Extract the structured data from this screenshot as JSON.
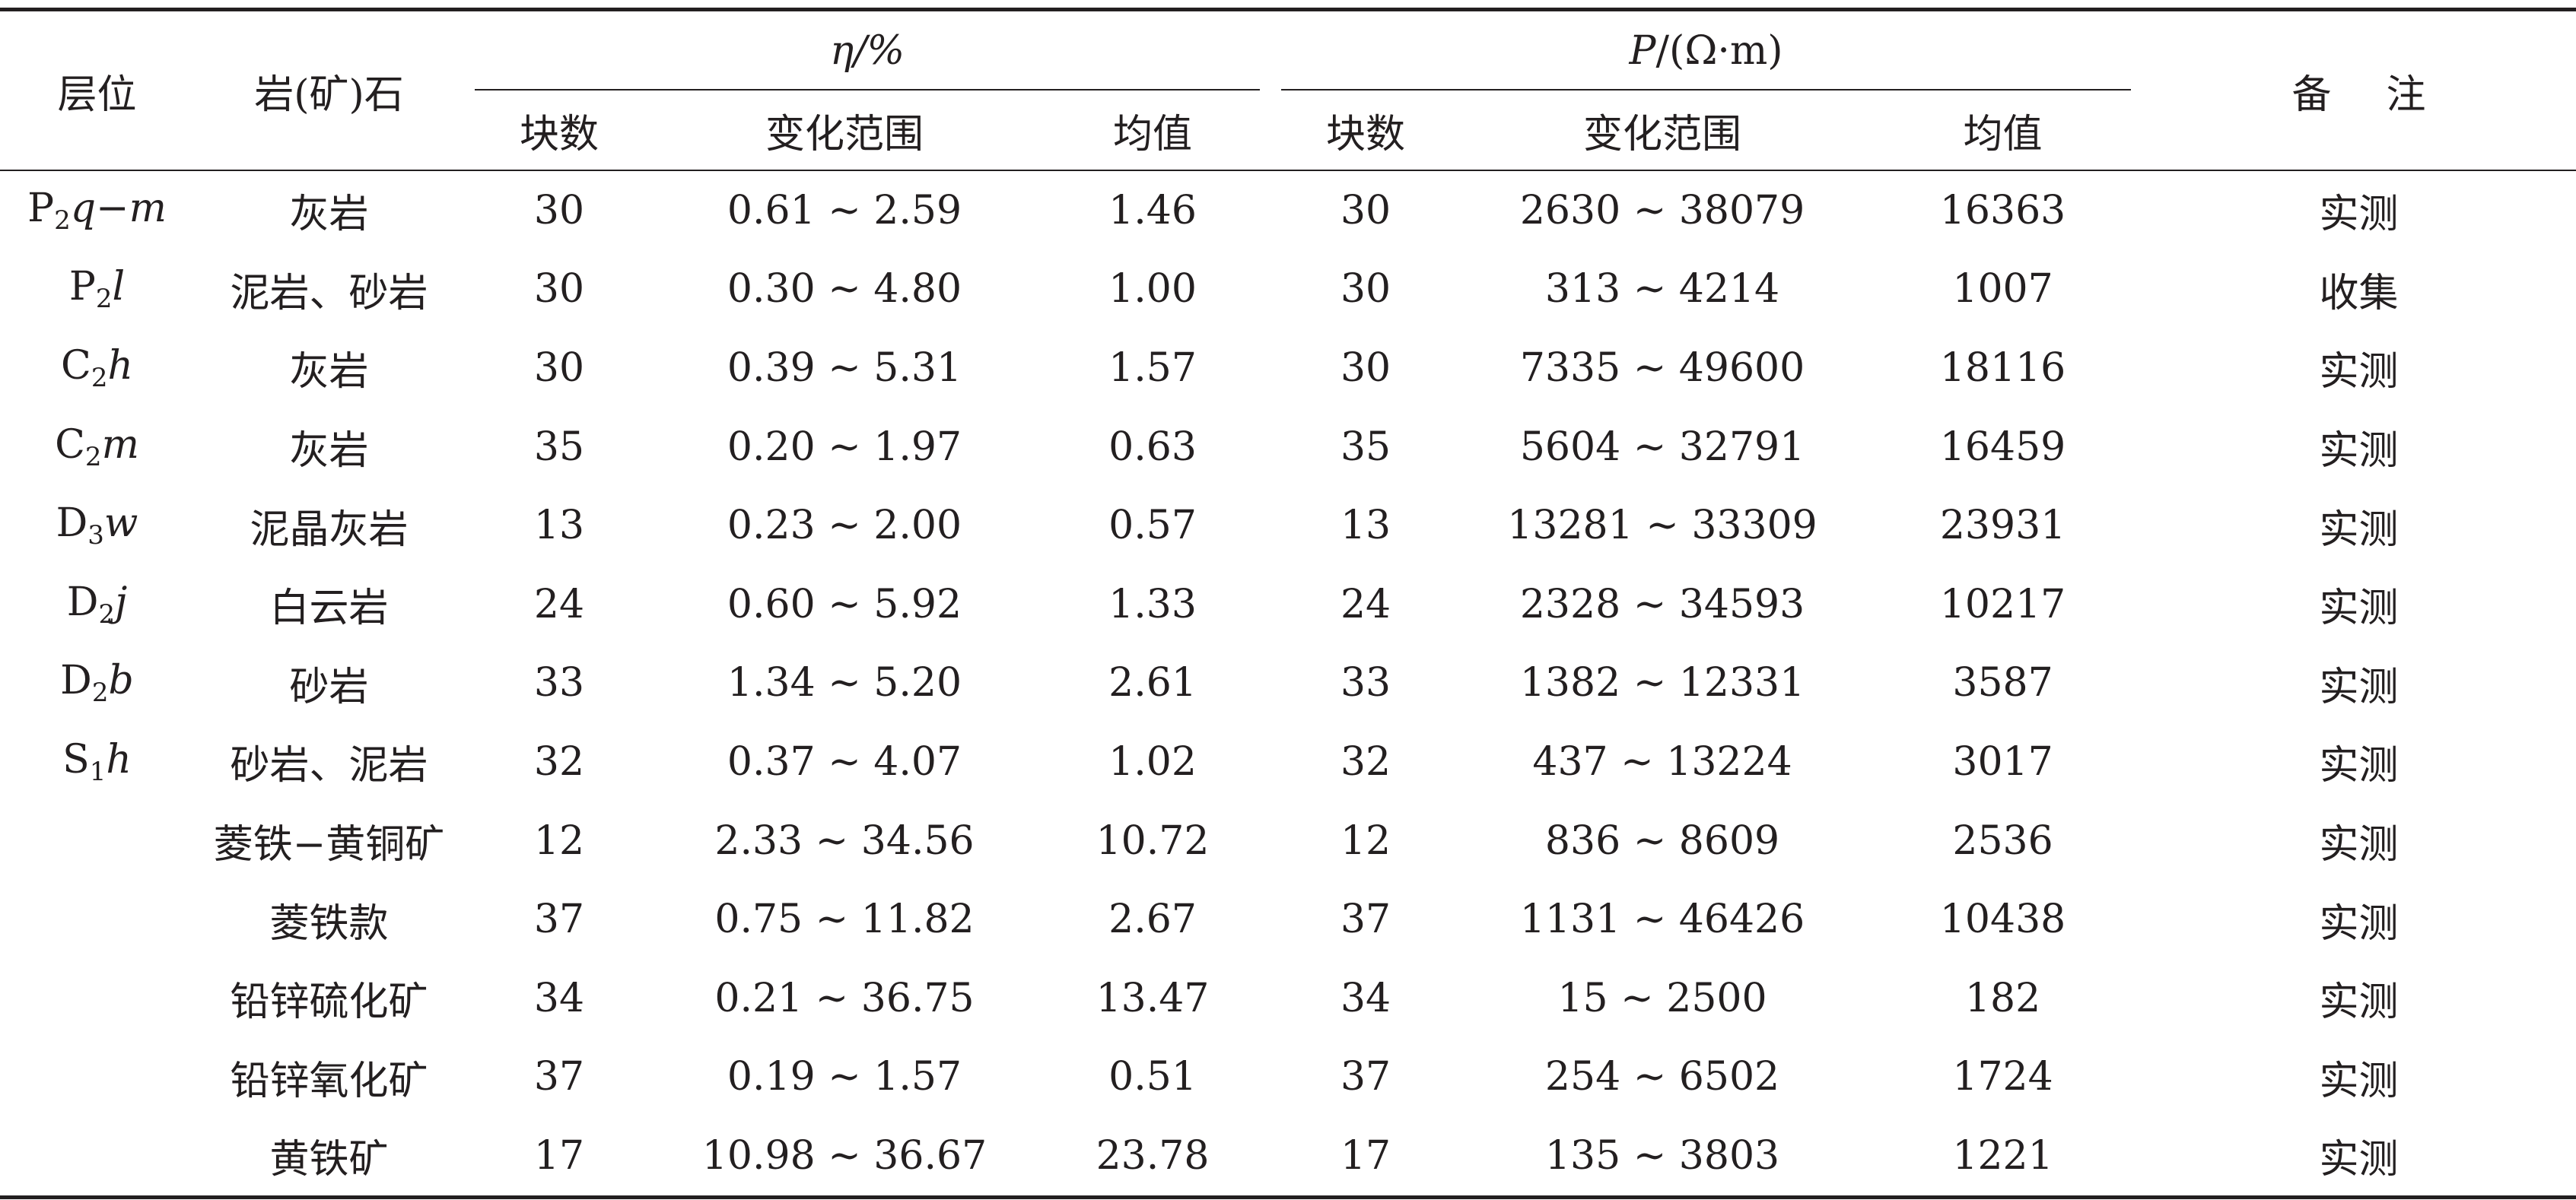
{
  "table": {
    "headers": {
      "layer": "层位",
      "rock": "岩(矿)石",
      "eta_group": "η/%",
      "rho_group_symbol": "P",
      "rho_group_unit": "/(Ω·m)",
      "note": "备注",
      "count": "块数",
      "range": "变化范围",
      "mean": "均值"
    },
    "rows": [
      {
        "layer_main": "P",
        "layer_sub": "2",
        "layer_suffix": "q−m",
        "rock": "灰岩",
        "eta_n": "30",
        "eta_range": "0.61 ~ 2.59",
        "eta_mean": "1.46",
        "rho_n": "30",
        "rho_range": "2630 ~ 38079",
        "rho_mean": "16363",
        "note": "实测"
      },
      {
        "layer_main": "P",
        "layer_sub": "2",
        "layer_suffix": "l",
        "rock": "泥岩、砂岩",
        "eta_n": "30",
        "eta_range": "0.30 ~ 4.80",
        "eta_mean": "1.00",
        "rho_n": "30",
        "rho_range": "313 ~ 4214",
        "rho_mean": "1007",
        "note": "收集"
      },
      {
        "layer_main": "C",
        "layer_sub": "2",
        "layer_suffix": "h",
        "rock": "灰岩",
        "eta_n": "30",
        "eta_range": "0.39 ~ 5.31",
        "eta_mean": "1.57",
        "rho_n": "30",
        "rho_range": "7335 ~ 49600",
        "rho_mean": "18116",
        "note": "实测"
      },
      {
        "layer_main": "C",
        "layer_sub": "2",
        "layer_suffix": "m",
        "rock": "灰岩",
        "eta_n": "35",
        "eta_range": "0.20 ~ 1.97",
        "eta_mean": "0.63",
        "rho_n": "35",
        "rho_range": "5604 ~ 32791",
        "rho_mean": "16459",
        "note": "实测"
      },
      {
        "layer_main": "D",
        "layer_sub": "3",
        "layer_suffix": "w",
        "rock": "泥晶灰岩",
        "eta_n": "13",
        "eta_range": "0.23 ~ 2.00",
        "eta_mean": "0.57",
        "rho_n": "13",
        "rho_range": "13281 ~ 33309",
        "rho_mean": "23931",
        "note": "实测"
      },
      {
        "layer_main": "D",
        "layer_sub": "2",
        "layer_suffix": "j",
        "rock": "白云岩",
        "eta_n": "24",
        "eta_range": "0.60 ~ 5.92",
        "eta_mean": "1.33",
        "rho_n": "24",
        "rho_range": "2328 ~ 34593",
        "rho_mean": "10217",
        "note": "实测"
      },
      {
        "layer_main": "D",
        "layer_sub": "2",
        "layer_suffix": "b",
        "rock": "砂岩",
        "eta_n": "33",
        "eta_range": "1.34 ~ 5.20",
        "eta_mean": "2.61",
        "rho_n": "33",
        "rho_range": "1382 ~ 12331",
        "rho_mean": "3587",
        "note": "实测"
      },
      {
        "layer_main": "S",
        "layer_sub": "1",
        "layer_suffix": "h",
        "rock": "砂岩、泥岩",
        "eta_n": "32",
        "eta_range": "0.37 ~ 4.07",
        "eta_mean": "1.02",
        "rho_n": "32",
        "rho_range": "437 ~ 13224",
        "rho_mean": "3017",
        "note": "实测"
      },
      {
        "layer_main": "",
        "layer_sub": "",
        "layer_suffix": "",
        "rock": "菱铁−黄铜矿",
        "eta_n": "12",
        "eta_range": "2.33 ~ 34.56",
        "eta_mean": "10.72",
        "rho_n": "12",
        "rho_range": "836 ~ 8609",
        "rho_mean": "2536",
        "note": "实测"
      },
      {
        "layer_main": "",
        "layer_sub": "",
        "layer_suffix": "",
        "rock": "菱铁款",
        "eta_n": "37",
        "eta_range": "0.75 ~ 11.82",
        "eta_mean": "2.67",
        "rho_n": "37",
        "rho_range": "1131 ~ 46426",
        "rho_mean": "10438",
        "note": "实测"
      },
      {
        "layer_main": "",
        "layer_sub": "",
        "layer_suffix": "",
        "rock": "铅锌硫化矿",
        "eta_n": "34",
        "eta_range": "0.21 ~ 36.75",
        "eta_mean": "13.47",
        "rho_n": "34",
        "rho_range": "15 ~ 2500",
        "rho_mean": "182",
        "note": "实测"
      },
      {
        "layer_main": "",
        "layer_sub": "",
        "layer_suffix": "",
        "rock": "铅锌氧化矿",
        "eta_n": "37",
        "eta_range": "0.19 ~ 1.57",
        "eta_mean": "0.51",
        "rho_n": "37",
        "rho_range": "254 ~ 6502",
        "rho_mean": "1724",
        "note": "实测"
      },
      {
        "layer_main": "",
        "layer_sub": "",
        "layer_suffix": "",
        "rock": "黄铁矿",
        "eta_n": "17",
        "eta_range": "10.98 ~ 36.67",
        "eta_mean": "23.78",
        "rho_n": "17",
        "rho_range": "135 ~ 3803",
        "rho_mean": "1221",
        "note": "实测"
      }
    ]
  }
}
